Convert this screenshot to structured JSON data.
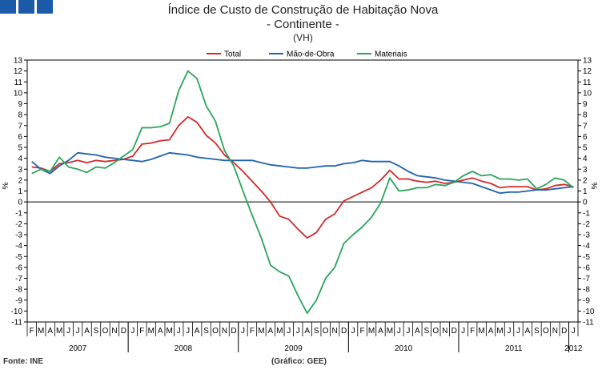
{
  "header": {
    "title": "Índice de Custo de Construção de Habitação Nova",
    "subtitle": "- Continente -",
    "unit_note": "(VH)"
  },
  "footer": {
    "source": "Fonte: INE",
    "credit": "(Gráfico: GEE)"
  },
  "chart_data": {
    "type": "line",
    "ylabel_left": "%",
    "ylabel_right": "%",
    "ylim": [
      -11,
      13
    ],
    "yticks": [
      13,
      12,
      11,
      10,
      9,
      8,
      7,
      6,
      5,
      4,
      3,
      2,
      1,
      0,
      -1,
      -2,
      -3,
      -4,
      -5,
      -6,
      -7,
      -8,
      -9,
      -10,
      -11
    ],
    "grid": false,
    "legend_position": "top-center",
    "month_labels": [
      "F",
      "M",
      "A",
      "M",
      "J",
      "J",
      "A",
      "S",
      "O",
      "N",
      "D",
      "J",
      "F",
      "M",
      "A",
      "M",
      "J",
      "J",
      "A",
      "S",
      "O",
      "N",
      "D",
      "J",
      "F",
      "M",
      "A",
      "M",
      "J",
      "J",
      "A",
      "S",
      "O",
      "N",
      "D",
      "J",
      "F",
      "M",
      "A",
      "M",
      "J",
      "J",
      "A",
      "S",
      "O",
      "N",
      "D",
      "J",
      "F",
      "M",
      "A",
      "M",
      "J",
      "J",
      "A",
      "S",
      "O",
      "N",
      "D",
      "J"
    ],
    "year_labels": [
      "2007",
      "2008",
      "2009",
      "2010",
      "2011",
      "2012"
    ],
    "series": [
      {
        "name": "Total",
        "color": "#d42a2a",
        "values": [
          3.2,
          3.1,
          2.8,
          3.5,
          3.6,
          3.8,
          3.6,
          3.8,
          3.7,
          3.8,
          3.9,
          4.2,
          5.3,
          5.4,
          5.6,
          5.7,
          7.0,
          7.8,
          7.3,
          6.1,
          5.4,
          4.3,
          3.6,
          2.8,
          1.9,
          1.0,
          0.0,
          -1.3,
          -1.6,
          -2.5,
          -3.3,
          -2.8,
          -1.6,
          -1.1,
          0.1,
          0.5,
          0.9,
          1.3,
          2.0,
          2.9,
          2.1,
          2.1,
          1.9,
          1.8,
          1.9,
          1.7,
          1.8,
          2.0,
          2.2,
          1.9,
          1.7,
          1.3,
          1.4,
          1.4,
          1.4,
          1.1,
          1.2,
          1.5,
          1.6,
          1.4
        ]
      },
      {
        "name": "Mão-de-Obra",
        "color": "#1f63ad",
        "values": [
          3.7,
          3.0,
          2.6,
          3.3,
          3.8,
          4.5,
          4.4,
          4.3,
          4.1,
          4.0,
          3.9,
          3.8,
          3.7,
          3.9,
          4.2,
          4.5,
          4.4,
          4.3,
          4.1,
          4.0,
          3.9,
          3.8,
          3.8,
          3.8,
          3.8,
          3.6,
          3.4,
          3.3,
          3.2,
          3.1,
          3.1,
          3.2,
          3.3,
          3.3,
          3.5,
          3.6,
          3.8,
          3.7,
          3.7,
          3.7,
          3.3,
          2.8,
          2.4,
          2.3,
          2.2,
          2.0,
          1.9,
          1.8,
          1.7,
          1.4,
          1.1,
          0.8,
          0.9,
          0.9,
          1.0,
          1.1,
          1.1,
          1.2,
          1.3,
          1.4
        ]
      },
      {
        "name": "Materiais",
        "color": "#2aa55a",
        "values": [
          2.6,
          3.0,
          2.8,
          4.1,
          3.2,
          3.0,
          2.7,
          3.2,
          3.1,
          3.6,
          4.2,
          4.8,
          6.8,
          6.8,
          6.9,
          7.2,
          10.2,
          12.0,
          11.3,
          8.8,
          7.4,
          4.7,
          3.3,
          1.0,
          -1.2,
          -3.3,
          -5.8,
          -6.4,
          -6.8,
          -8.6,
          -10.2,
          -9.0,
          -7.0,
          -6.0,
          -3.8,
          -3.0,
          -2.3,
          -1.4,
          -0.1,
          2.2,
          1.0,
          1.1,
          1.3,
          1.3,
          1.6,
          1.5,
          1.8,
          2.4,
          2.8,
          2.4,
          2.5,
          2.1,
          2.1,
          2.0,
          2.1,
          1.2,
          1.6,
          2.2,
          2.0,
          1.3
        ]
      }
    ]
  }
}
